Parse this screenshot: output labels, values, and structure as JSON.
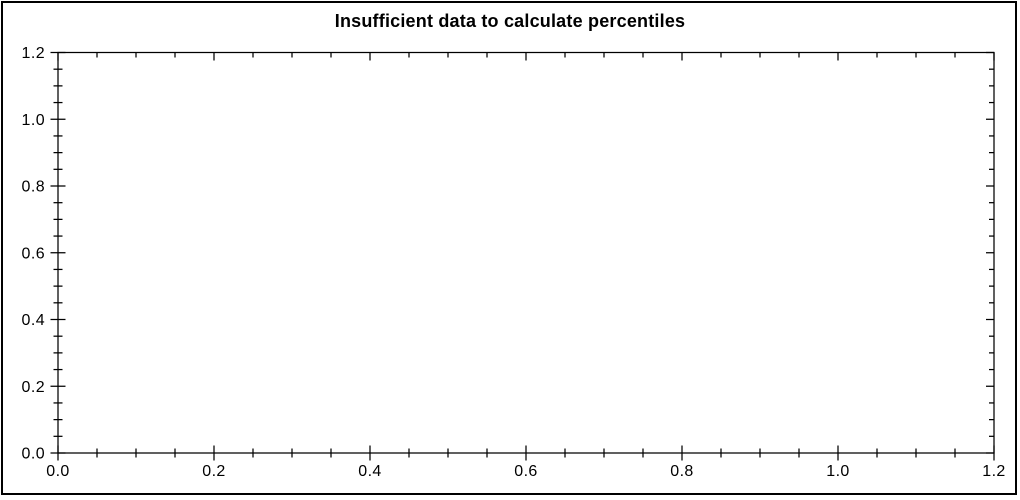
{
  "page": {
    "background": "#ffffff",
    "border_color": "#000000"
  },
  "chart_data": {
    "type": "scatter",
    "title": "Insufficient data to calculate percentiles",
    "series": [],
    "xlabel": "",
    "ylabel": "",
    "xlim": [
      0,
      1.2
    ],
    "ylim": [
      0,
      1.2
    ],
    "x_tick_labels": [
      "0.0",
      "0.2",
      "0.4",
      "0.6",
      "0.8",
      "1.0",
      "1.2"
    ],
    "y_tick_labels": [
      "0.0",
      "0.2",
      "0.4",
      "0.6",
      "0.8",
      "1.0",
      "1.2"
    ],
    "x_major_step": 0.2,
    "y_major_step": 0.2,
    "x_minor_step": 0.05,
    "y_minor_step": 0.05,
    "grid": false,
    "legend": "none",
    "tick_style": "crossing-on-bottom-left, inward-on-top-right",
    "axis_color": "#000000",
    "text_color": "#000000",
    "plot_background": "#ffffff"
  }
}
